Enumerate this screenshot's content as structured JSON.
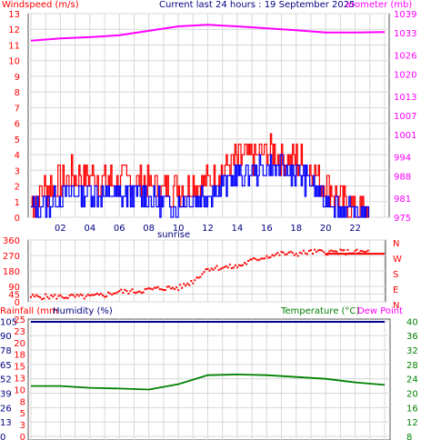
{
  "header": {
    "left": "Windspeed (m/s)",
    "center": "Current last 24 hours : 19 September 2025",
    "right": "arometer (mb)"
  },
  "chart_data": [
    {
      "type": "line",
      "title": "Current last 24 hours : 19 September 2025",
      "ylabel": "Windspeed (m/s)",
      "y2label": "arometer (mb)",
      "ylim": [
        0,
        13
      ],
      "y2lim": [
        975,
        1039
      ],
      "x_ticks": [
        "02",
        "04",
        "06",
        "08",
        "10",
        "12",
        "14",
        "16",
        "18",
        "20",
        "22"
      ],
      "x_annotation": "sunrise",
      "yticks": [
        0,
        1,
        2,
        3,
        4,
        5,
        6,
        7,
        8,
        9,
        10,
        11,
        12,
        13
      ],
      "y2ticks": [
        "975",
        "981",
        "988",
        "994",
        "1001",
        "1007",
        "1013",
        "1020",
        "1026",
        "1033",
        "1039"
      ],
      "series": [
        {
          "name": "gust",
          "color": "#ff0000",
          "x": [
            0,
            1,
            2,
            3,
            4,
            5,
            6,
            7,
            8,
            9,
            10,
            11,
            12,
            13,
            14,
            15,
            16,
            17,
            18,
            19,
            20,
            21,
            22,
            23
          ],
          "values": [
            1.0,
            1.8,
            2.3,
            2.7,
            2.6,
            2.4,
            2.3,
            2.5,
            2.2,
            1.8,
            1.8,
            2.2,
            2.4,
            3.0,
            3.6,
            3.9,
            4.1,
            3.9,
            3.7,
            3.1,
            2.0,
            1.0,
            0.6,
            0.3
          ]
        },
        {
          "name": "average",
          "color": "#0000ff",
          "x": [
            0,
            1,
            2,
            3,
            4,
            5,
            6,
            7,
            8,
            9,
            10,
            11,
            12,
            13,
            14,
            15,
            16,
            17,
            18,
            19,
            20,
            21,
            22,
            23
          ],
          "values": [
            0.4,
            0.9,
            1.3,
            1.6,
            1.5,
            1.4,
            1.3,
            1.5,
            1.2,
            0.9,
            0.8,
            1.2,
            1.5,
            2.0,
            2.6,
            2.9,
            3.2,
            3.0,
            2.8,
            2.2,
            1.2,
            0.4,
            0.2,
            0.1
          ]
        },
        {
          "name": "barometer",
          "color": "#ff00ff",
          "x": [
            0,
            2,
            4,
            6,
            8,
            10,
            12,
            14,
            16,
            18,
            20,
            22,
            24
          ],
          "values": [
            1030.5,
            1031.2,
            1031.6,
            1032.2,
            1033.6,
            1035.0,
            1035.5,
            1035.0,
            1034.4,
            1033.8,
            1033.1,
            1033.1,
            1033.2
          ]
        }
      ]
    },
    {
      "type": "scatter",
      "ylabel": "",
      "ylim": [
        0,
        360
      ],
      "yticks": [
        0,
        45,
        90,
        180,
        270,
        360
      ],
      "compass": [
        "N",
        "W",
        "S",
        "E",
        "N"
      ],
      "series": [
        {
          "name": "wind direction",
          "color": "#ff0000",
          "x": [
            0,
            1,
            2,
            3,
            4,
            5,
            6,
            7,
            8,
            9,
            10,
            11,
            12,
            13,
            14,
            15,
            16,
            17,
            18,
            19,
            20,
            21,
            22,
            23
          ],
          "values": [
            30,
            30,
            30,
            30,
            30,
            40,
            60,
            60,
            70,
            80,
            80,
            120,
            195,
            200,
            205,
            240,
            265,
            280,
            280,
            290,
            290,
            290,
            290,
            290
          ]
        }
      ]
    },
    {
      "type": "line",
      "ylabel": "Rainfall (mm",
      "y_humidity_label": "Humidity (%)",
      "y2label": "Temperature (°C)",
      "y3label": "Dew Point",
      "yticks_left": [
        "0",
        "13",
        "26",
        "39",
        "52",
        "65",
        "78",
        "90",
        "105"
      ],
      "yticks_mid": [
        "0",
        "3",
        "5",
        "8",
        "10",
        "13",
        "15",
        "18",
        "20",
        "23",
        "25"
      ],
      "yticks_right": [
        "8",
        "12",
        "16",
        "20",
        "24",
        "28",
        "32",
        "36",
        "40"
      ],
      "y2lim": [
        8,
        40
      ],
      "series": [
        {
          "name": "temperature",
          "color": "#008000",
          "x": [
            0,
            2,
            4,
            6,
            8,
            10,
            12,
            14,
            16,
            18,
            20,
            22,
            24
          ],
          "values": [
            22.0,
            22.0,
            21.5,
            21.3,
            21.0,
            22.5,
            25.0,
            25.2,
            25.0,
            24.5,
            24.0,
            23.0,
            22.3
          ]
        },
        {
          "name": "humidity",
          "color": "#00008b",
          "x": [
            0,
            24
          ],
          "values": [
            100,
            100
          ]
        }
      ]
    }
  ]
}
